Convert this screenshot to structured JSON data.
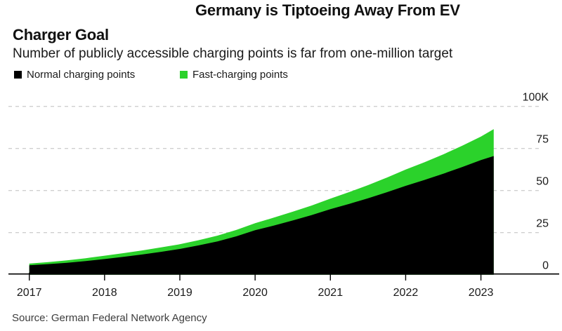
{
  "header": {
    "title_line1": "Germany is Tiptoeing Away From EV",
    "title_line2": "Charger Goal",
    "subtitle": "Number of publicly accessible charging points is far from one-million target"
  },
  "legend": {
    "items": [
      {
        "label": "Normal charging points",
        "color": "#000000"
      },
      {
        "label": "Fast-charging points",
        "color": "#2bd22b"
      }
    ]
  },
  "source": "Source: German Federal Network Agency",
  "colors": {
    "normal_series": "#000000",
    "fast_series": "#2bd22b",
    "gridline": "#cfcfcf",
    "axis": "#000000",
    "tick_label": "#1a1a1a",
    "background": "#ffffff"
  },
  "chart_data": {
    "type": "area",
    "stacked": true,
    "title": "Germany is Tiptoeing Away From EV Charger Goal",
    "subtitle": "Number of publicly accessible charging points is far from one-million target",
    "unit": "thousand charging points",
    "x": [
      2017.0,
      2017.25,
      2017.5,
      2017.75,
      2018.0,
      2018.25,
      2018.5,
      2018.75,
      2019.0,
      2019.25,
      2019.5,
      2019.75,
      2020.0,
      2020.25,
      2020.5,
      2020.75,
      2021.0,
      2021.25,
      2021.5,
      2021.75,
      2022.0,
      2022.25,
      2022.5,
      2022.75,
      2023.0,
      2023.17
    ],
    "series": [
      {
        "name": "Normal charging points",
        "values": [
          5.6,
          6.3,
          7.1,
          8.1,
          9.3,
          10.6,
          12.0,
          13.6,
          15.3,
          17.4,
          19.8,
          22.8,
          26.4,
          29.2,
          32.2,
          35.4,
          38.9,
          42.1,
          45.4,
          49.0,
          52.8,
          56.3,
          60.0,
          63.9,
          68.1,
          70.5
        ]
      },
      {
        "name": "Fast-charging points",
        "values": [
          1.0,
          1.2,
          1.4,
          1.7,
          2.0,
          2.2,
          2.4,
          2.6,
          2.8,
          3.1,
          3.4,
          3.8,
          4.2,
          4.7,
          5.2,
          5.7,
          6.3,
          7.0,
          7.8,
          8.7,
          9.7,
          10.5,
          11.5,
          12.7,
          14.0,
          16.0
        ]
      }
    ],
    "x_ticks": [
      2017,
      2018,
      2019,
      2020,
      2021,
      2022,
      2023
    ],
    "x_tick_labels": [
      "2017",
      "2018",
      "2019",
      "2020",
      "2021",
      "2022",
      "2023"
    ],
    "y_ticks": [
      0,
      25,
      50,
      75,
      100
    ],
    "y_tick_labels": [
      "0",
      "25",
      "50",
      "75",
      "100K"
    ],
    "ylim": [
      0,
      100
    ],
    "xlim": [
      2017,
      2023.85
    ],
    "grid": "horizontal-dashed",
    "legend_position": "top-left",
    "axis_label_side": "right"
  }
}
